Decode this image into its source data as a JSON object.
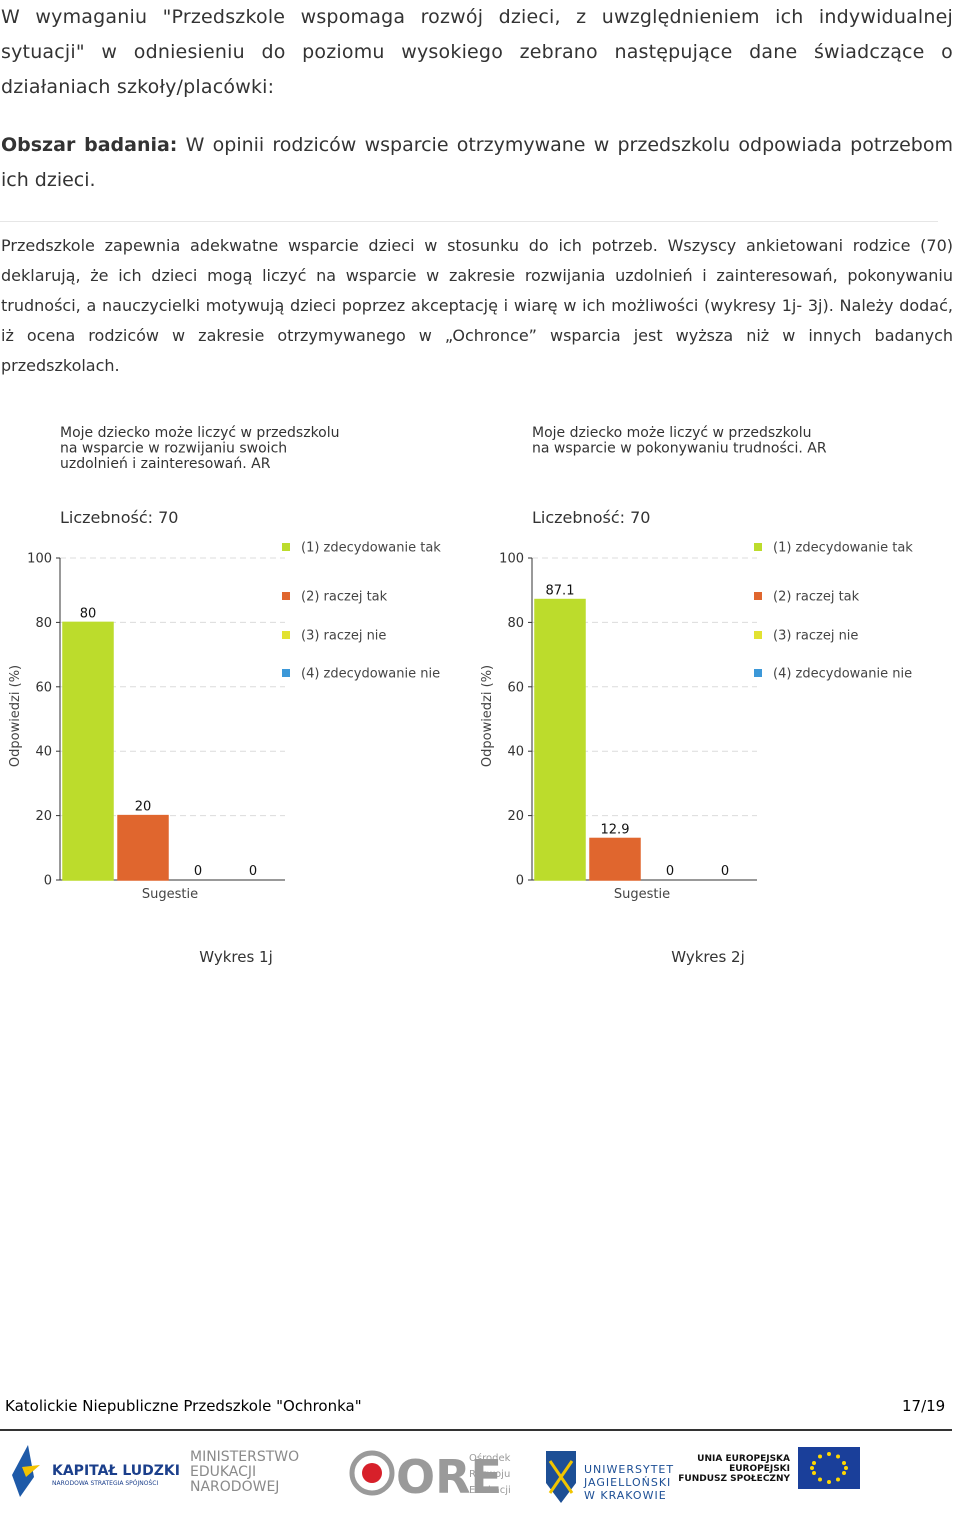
{
  "document": {
    "paragraph_1": "W wymaganiu \"Przedszkole wspomaga rozwój dzieci, z uwzględnieniem ich indywidualnej sytuacji\" w odniesieniu do poziomu wysokiego zebrano następujące dane świadczące o działaniach szkoły/placówki:",
    "area_label": "Obszar badania:",
    "area_text": "W opinii rodziców wsparcie otrzymywane w przedszkolu odpowiada potrzebom ich dzieci.",
    "paragraph_2": "Przedszkole zapewnia adekwatne wsparcie dzieci w stosunku do ich potrzeb. Wszyscy ankietowani rodzice (70) deklarują, że ich dzieci mogą liczyć na wsparcie w zakresie rozwijania uzdolnień i zainteresowań, pokonywaniu trudności, a nauczycielki motywują dzieci poprzez akceptację i wiarę w ich możliwości (wykresy 1j- 3j). Należy dodać, iż ocena rodziców w zakresie otrzymywanego w „Ochronce” wsparcia jest wyższa niż w innych badanych przedszkolach."
  },
  "chart_data": [
    {
      "type": "bar",
      "title": [
        "Moje dziecko może liczyć w przedszkolu",
        "na wsparcie w rozwijaniu swoich",
        "uzdolnień i zainteresowań. AR"
      ],
      "subtitle": "Liczebność: 70",
      "y_label": "Odpowiedzi (%)",
      "x_label": "Sugestie",
      "caption": "Wykres 1j",
      "categories": [
        "(1) zdecydowanie tak",
        "(2) raczej tak",
        "(3) raczej nie",
        "(4) zdecydowanie nie"
      ],
      "values": [
        80,
        20,
        0,
        0
      ],
      "colors": [
        "#bcdc2c",
        "#e0662e",
        "#e2e232",
        "#3c98d8"
      ],
      "ylim": [
        0,
        100
      ],
      "yticks": [
        0,
        20,
        40,
        60,
        80,
        100
      ],
      "grid": true
    },
    {
      "type": "bar",
      "title": [
        "Moje dziecko może liczyć w przedszkolu",
        "na wsparcie w pokonywaniu trudności. AR"
      ],
      "subtitle": "Liczebność: 70",
      "y_label": "Odpowiedzi (%)",
      "x_label": "Sugestie",
      "caption": "Wykres 2j",
      "categories": [
        "(1) zdecydowanie tak",
        "(2) raczej tak",
        "(3) raczej nie",
        "(4) zdecydowanie nie"
      ],
      "values": [
        87.1,
        12.9,
        0,
        0
      ],
      "colors": [
        "#bcdc2c",
        "#e0662e",
        "#e2e232",
        "#3c98d8"
      ],
      "ylim": [
        0,
        100
      ],
      "yticks": [
        0,
        20,
        40,
        60,
        80,
        100
      ],
      "grid": true
    }
  ],
  "footer": {
    "text": "Katolickie Niepubliczne Przedszkole \"Ochronka\"",
    "page": "17/19"
  },
  "logos": {
    "kl_title": "KAPITAŁ LUDZKI",
    "kl_sub": "NARODOWA STRATEGIA SPÓJNOŚCI",
    "men": [
      "MINISTERSTWO",
      "EDUKACJI",
      "NARODOWEJ"
    ],
    "ore": "ORE",
    "ore_sub": [
      "Ośrodek",
      "Rozwoju",
      "Edukacji"
    ],
    "uj": [
      "UNIWERSYTET",
      "JAGIELLOŃSKI",
      "W KRAKOWIE"
    ],
    "eu": [
      "UNIA EUROPEJSKA",
      "EUROPEJSKI",
      "FUNDUSZ SPOŁECZNY"
    ]
  }
}
